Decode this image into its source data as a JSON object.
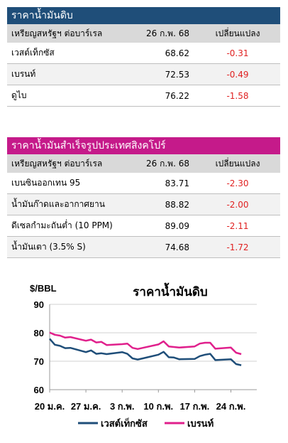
{
  "crude": {
    "title": "ราคาน้ำมันดิบ",
    "col1": "เหรียญสหรัฐฯ ต่อบาร์เรล",
    "col2": "26 ก.พ. 68",
    "col3": "เปลี่ยนแปลง",
    "rows": [
      {
        "name": "เวสต์เท็กซัส",
        "price": "68.62",
        "change": "-0.31"
      },
      {
        "name": "เบรนท์",
        "price": "72.53",
        "change": "-0.49"
      },
      {
        "name": "ดูไบ",
        "price": "76.22",
        "change": "-1.58"
      }
    ]
  },
  "refined": {
    "title": "ราคาน้ำมันสำเร็จรูปประเทศสิงคโปร์",
    "col1": "เหรียญสหรัฐฯ ต่อบาร์เรล",
    "col2": "26 ก.พ. 68",
    "col3": "เปลี่ยนแปลง",
    "rows": [
      {
        "name": "เบนซินออกเทน 95",
        "price": "83.71",
        "change": "-2.30"
      },
      {
        "name": "น้ำมันก๊าดและอากาศยาน",
        "price": "88.82",
        "change": "-2.00"
      },
      {
        "name": "ดีเซลกำมะถันต่ำ (10 PPM)",
        "price": "89.09",
        "change": "-2.11"
      },
      {
        "name": "น้ำมันเตา (3.5% S)",
        "price": "74.68",
        "change": "-1.72"
      }
    ]
  },
  "colors": {
    "wti": "#1f4e79",
    "brent": "#e0208c",
    "negative": "#e02020"
  },
  "chart_data": {
    "type": "line",
    "title": "ราคาน้ำมันดิบ",
    "ylabel": "$/BBL",
    "ylim": [
      60,
      90
    ],
    "yticks": [
      60,
      70,
      80,
      90
    ],
    "xticks": [
      "20 ม.ค.",
      "27 ม.ค.",
      "3 ก.พ.",
      "10 ก.พ.",
      "17 ก.พ.",
      "24 ก.พ."
    ],
    "x": [
      "2025-01-20",
      "2025-01-21",
      "2025-01-22",
      "2025-01-23",
      "2025-01-24",
      "2025-01-27",
      "2025-01-28",
      "2025-01-29",
      "2025-01-30",
      "2025-01-31",
      "2025-02-03",
      "2025-02-04",
      "2025-02-05",
      "2025-02-06",
      "2025-02-07",
      "2025-02-10",
      "2025-02-11",
      "2025-02-12",
      "2025-02-13",
      "2025-02-14",
      "2025-02-17",
      "2025-02-18",
      "2025-02-19",
      "2025-02-20",
      "2025-02-21",
      "2025-02-24",
      "2025-02-25",
      "2025-02-26"
    ],
    "series": [
      {
        "name": "เวสต์เท็กซัส",
        "values": [
          77.9,
          75.8,
          75.4,
          74.6,
          74.7,
          73.2,
          73.8,
          72.6,
          72.8,
          72.5,
          73.2,
          72.6,
          71.0,
          70.6,
          71.0,
          72.3,
          73.3,
          71.4,
          71.3,
          70.7,
          70.8,
          71.8,
          72.3,
          72.6,
          70.4,
          70.7,
          69.0,
          68.6
        ]
      },
      {
        "name": "เบรนท์",
        "values": [
          80.1,
          79.3,
          79.0,
          78.3,
          78.5,
          77.2,
          77.6,
          76.6,
          76.8,
          75.7,
          76.0,
          76.2,
          74.7,
          74.3,
          74.7,
          75.9,
          77.0,
          75.2,
          75.0,
          74.8,
          75.2,
          76.2,
          76.5,
          76.5,
          74.4,
          74.8,
          73.0,
          72.5
        ]
      }
    ],
    "legend_position": "bottom"
  }
}
